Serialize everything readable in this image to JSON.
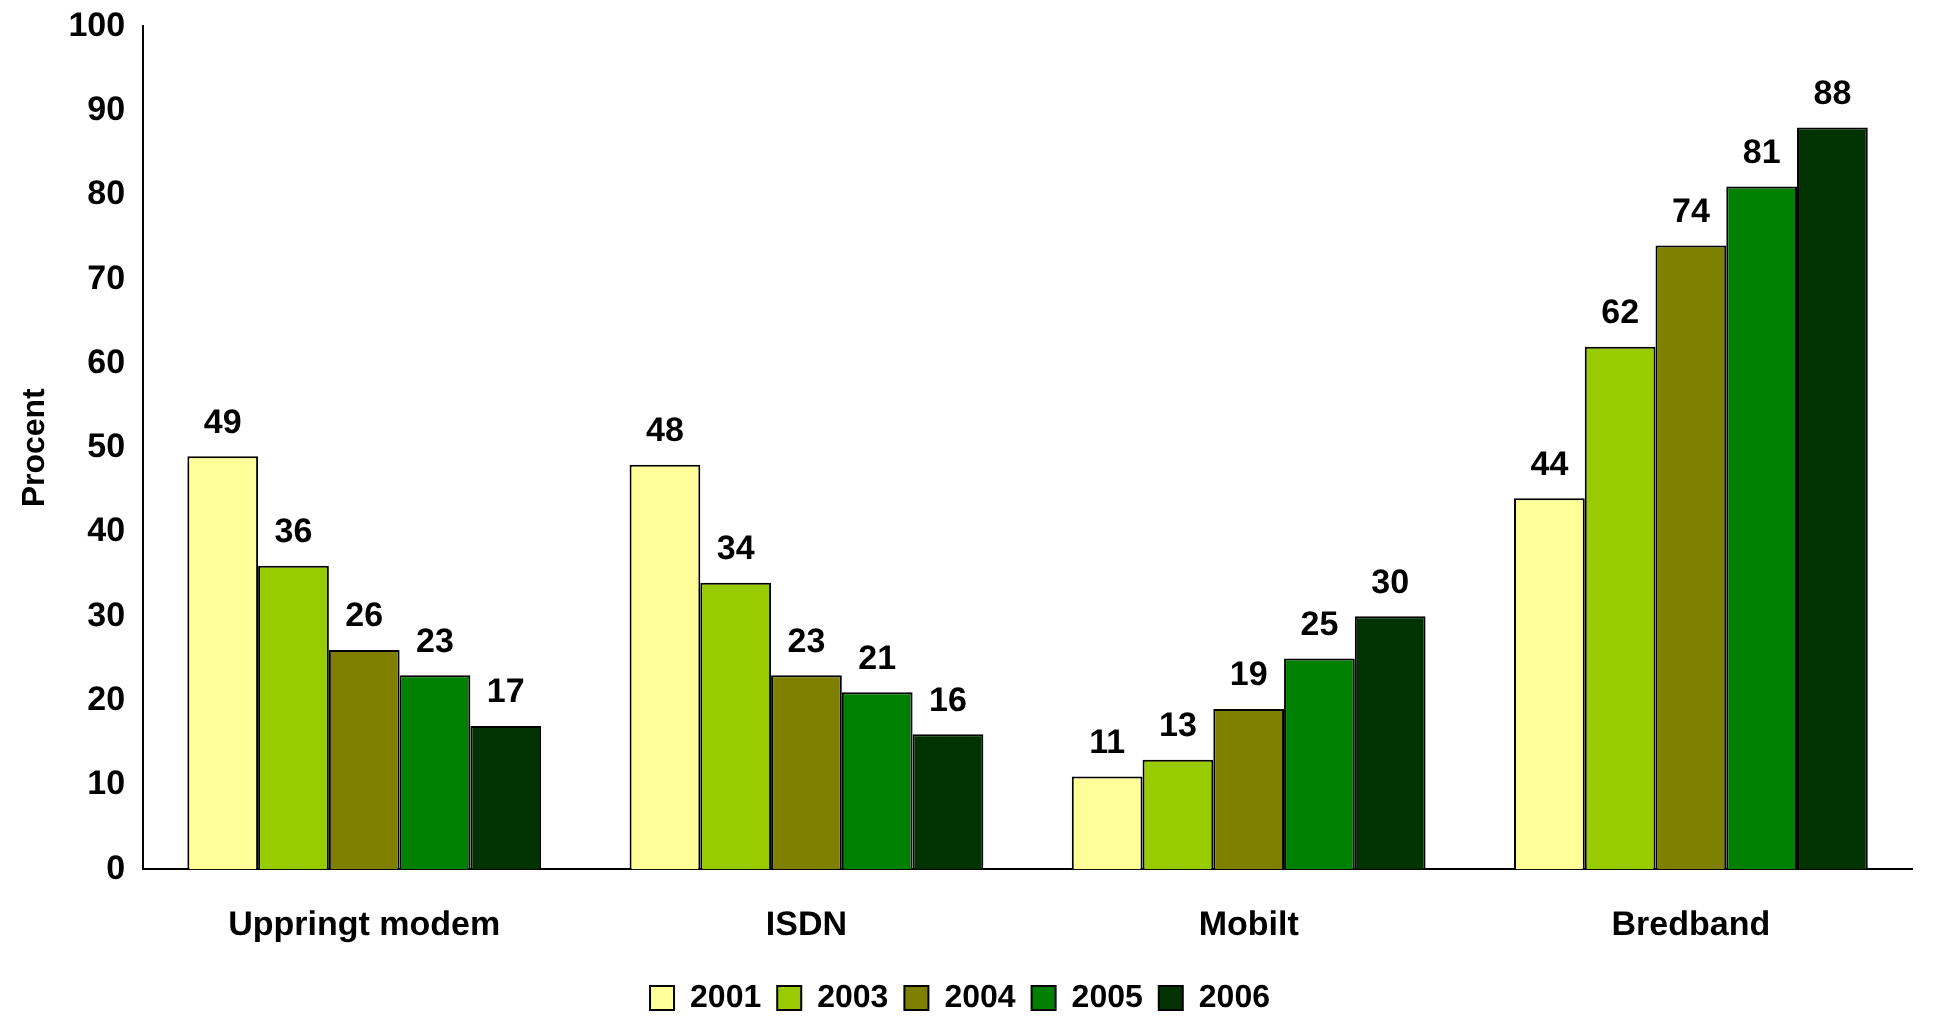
{
  "chart_data": {
    "type": "bar",
    "ylabel": "Procent",
    "categories": [
      "Uppringt modem",
      "ISDN",
      "Mobilt",
      "Bredband"
    ],
    "series": [
      {
        "name": "2001",
        "color": "#ffff99",
        "values": [
          49,
          48,
          11,
          44
        ]
      },
      {
        "name": "2003",
        "color": "#99cc00",
        "values": [
          36,
          34,
          13,
          62
        ]
      },
      {
        "name": "2004",
        "color": "#808000",
        "values": [
          26,
          23,
          19,
          74
        ]
      },
      {
        "name": "2005",
        "color": "#008000",
        "values": [
          23,
          21,
          25,
          81
        ]
      },
      {
        "name": "2006",
        "color": "#003300",
        "values": [
          17,
          16,
          30,
          88
        ]
      }
    ],
    "ylim": [
      0,
      100
    ],
    "yticks": [
      0,
      10,
      20,
      30,
      40,
      50,
      60,
      70,
      80,
      90,
      100
    ],
    "grid": false,
    "legend": "bottom",
    "data_labels": true
  }
}
